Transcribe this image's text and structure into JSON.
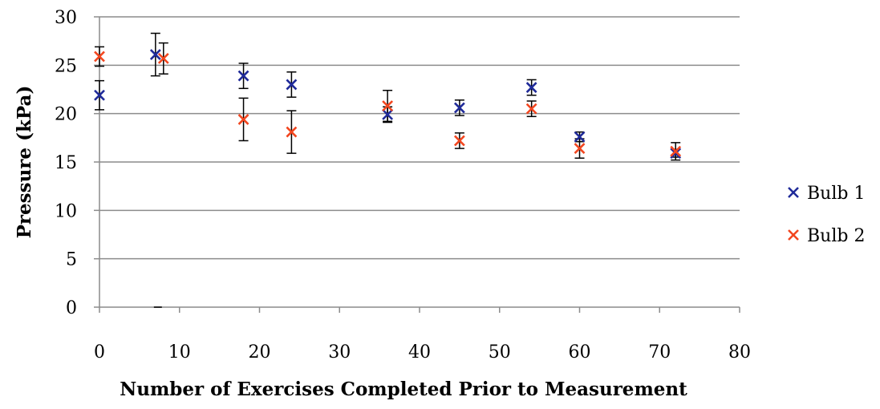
{
  "chart_data": {
    "type": "scatter",
    "title": "",
    "xlabel": "Number of Exercises Completed Prior to Measurement",
    "ylabel": "Pressure (kPa)",
    "xlim": [
      0,
      80
    ],
    "ylim": [
      0,
      30
    ],
    "x_ticks": [
      0,
      10,
      20,
      30,
      40,
      50,
      60,
      70,
      80
    ],
    "y_ticks": [
      0,
      5,
      10,
      15,
      20,
      25,
      30
    ],
    "grid": "horizontal",
    "legend_position": "right",
    "series": [
      {
        "name": "Bulb 1",
        "color": "#1f2a99",
        "marker": "x",
        "points": [
          {
            "x": 0,
            "y": 21.9,
            "err": 1.5
          },
          {
            "x": 7,
            "y": 26.1,
            "err": 2.2
          },
          {
            "x": 18,
            "y": 23.9,
            "err": 1.3
          },
          {
            "x": 24,
            "y": 23.0,
            "err": 1.3
          },
          {
            "x": 36,
            "y": 19.9,
            "err": 0.8
          },
          {
            "x": 45,
            "y": 20.6,
            "err": 0.8
          },
          {
            "x": 54,
            "y": 22.7,
            "err": 0.8
          },
          {
            "x": 60,
            "y": 17.6,
            "err": 0.5
          },
          {
            "x": 72,
            "y": 15.9,
            "err": 0.4
          }
        ]
      },
      {
        "name": "Bulb 2",
        "color": "#f2461f",
        "marker": "x",
        "points": [
          {
            "x": 0,
            "y": 25.9,
            "err": 1.0
          },
          {
            "x": 8,
            "y": 25.7,
            "err": 1.6
          },
          {
            "x": 18,
            "y": 19.4,
            "err": 2.2
          },
          {
            "x": 24,
            "y": 18.1,
            "err": 2.2
          },
          {
            "x": 36,
            "y": 20.8,
            "err": 1.6
          },
          {
            "x": 45,
            "y": 17.2,
            "err": 0.8
          },
          {
            "x": 54,
            "y": 20.5,
            "err": 0.8
          },
          {
            "x": 60,
            "y": 16.4,
            "err": 1.0
          },
          {
            "x": 72,
            "y": 16.1,
            "err": 0.9
          }
        ]
      }
    ],
    "annotations": [
      {
        "type": "dash",
        "x_start": 7,
        "x_end": 8,
        "y": 0
      }
    ]
  }
}
